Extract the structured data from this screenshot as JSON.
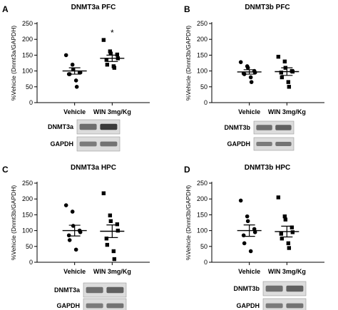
{
  "chart_data": [
    {
      "panel": "A",
      "type": "scatter",
      "title": "DNMT3a PFC",
      "ylabel": "%Vehicle (Dnmt3a/GAPDH)",
      "categories": [
        "Vehicle",
        "WIN 3mg/Kg"
      ],
      "ylim": [
        0,
        250
      ],
      "yticks": [
        0,
        50,
        100,
        150,
        200,
        250
      ],
      "series": [
        {
          "values": [
            150,
            120,
            105,
            95,
            95,
            90,
            90,
            70,
            50
          ],
          "mean": 100,
          "sem": 10
        },
        {
          "values": [
            198,
            162,
            155,
            152,
            140,
            135,
            120,
            115,
            110
          ],
          "mean": 140,
          "sem": 10
        }
      ],
      "significance": [
        {
          "category": 1,
          "mark": "*"
        }
      ],
      "blot": {
        "labels": [
          "DNMT3a",
          "GAPDH"
        ]
      }
    },
    {
      "panel": "B",
      "type": "scatter",
      "title": "DNMT3b PFC",
      "ylabel": "%Vehicle (Dnmt3b/GAPDH)",
      "categories": [
        "Vehicle",
        "WIN 3mg/Kg"
      ],
      "ylim": [
        0,
        250
      ],
      "yticks": [
        0,
        50,
        100,
        150,
        200,
        250
      ],
      "series": [
        {
          "values": [
            128,
            115,
            110,
            100,
            95,
            92,
            90,
            80,
            65
          ],
          "mean": 97,
          "sem": 7
        },
        {
          "values": [
            145,
            130,
            110,
            100,
            98,
            95,
            80,
            65,
            50
          ],
          "mean": 98,
          "sem": 12
        }
      ],
      "significance": [],
      "blot": {
        "labels": [
          "DNMT3b",
          "GAPDH"
        ]
      }
    },
    {
      "panel": "C",
      "type": "scatter",
      "title": "DNMT3a HPC",
      "ylabel": "%Vehicle (Dnmt3b/GAPDH)",
      "categories": [
        "Vehicle",
        "WIN 3mg/Kg"
      ],
      "ylim": [
        0,
        250
      ],
      "yticks": [
        0,
        50,
        100,
        150,
        200,
        250
      ],
      "series": [
        {
          "values": [
            180,
            160,
            115,
            100,
            95,
            85,
            70,
            40
          ],
          "mean": 100,
          "sem": 17
        },
        {
          "values": [
            218,
            148,
            130,
            120,
            100,
            75,
            55,
            35,
            10
          ],
          "mean": 98,
          "sem": 20
        }
      ],
      "significance": [],
      "blot": {
        "labels": [
          "DNMT3a",
          "GAPDH"
        ]
      }
    },
    {
      "panel": "D",
      "type": "scatter",
      "title": "DNMT3b HPC",
      "ylabel": "%Vehicle (Dnmt3b/GAPDH)",
      "categories": [
        "Vehicle",
        "WIN 3mg/Kg"
      ],
      "ylim": [
        0,
        250
      ],
      "yticks": [
        0,
        50,
        100,
        150,
        200,
        250
      ],
      "series": [
        {
          "values": [
            195,
            145,
            130,
            105,
            95,
            85,
            60,
            35
          ],
          "mean": 100,
          "sem": 18
        },
        {
          "values": [
            205,
            145,
            135,
            110,
            95,
            90,
            75,
            60,
            45
          ],
          "mean": 97,
          "sem": 17
        }
      ],
      "significance": [],
      "blot": {
        "labels": [
          "DNMT3b",
          "GAPDH"
        ]
      }
    }
  ]
}
